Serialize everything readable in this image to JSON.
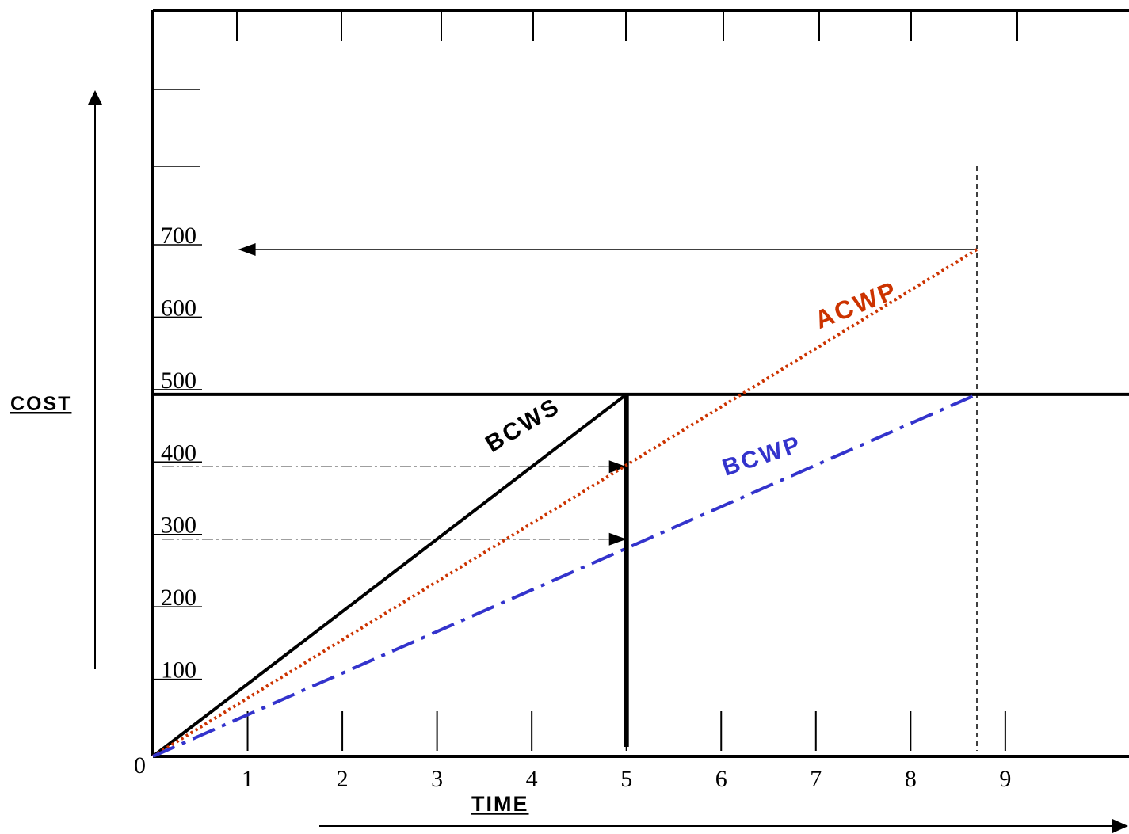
{
  "chart_data": {
    "type": "line",
    "xlabel": "TIME",
    "ylabel": "COST",
    "origin_label": "0",
    "x_tick_labels": [
      {
        "x": 1,
        "label": "1"
      },
      {
        "x": 2,
        "label": "2"
      },
      {
        "x": 3,
        "label": "3"
      },
      {
        "x": 4,
        "label": "4"
      },
      {
        "x": 5,
        "label": "5"
      },
      {
        "x": 6,
        "label": "6"
      },
      {
        "x": 7,
        "label": "7"
      },
      {
        "x": 8,
        "label": "8"
      },
      {
        "x": 9,
        "label": "9"
      }
    ],
    "y_tick_labels": [
      {
        "y": 100,
        "label": "100"
      },
      {
        "y": 200,
        "label": "200"
      },
      {
        "y": 300,
        "label": "300"
      },
      {
        "y": 400,
        "label": "400"
      },
      {
        "y": 500,
        "label": "500"
      },
      {
        "y": 600,
        "label": "600"
      },
      {
        "y": 700,
        "label": "700"
      }
    ],
    "series": [
      {
        "name": "BCWS",
        "color": "#000000",
        "style": "solid",
        "points": [
          [
            0,
            0
          ],
          [
            5,
            500
          ]
        ]
      },
      {
        "name": "ACWP",
        "color": "#cc3300",
        "style": "dotted",
        "points": [
          [
            0,
            0
          ],
          [
            8.7,
            700
          ]
        ]
      },
      {
        "name": "BCWP",
        "color": "#3333cc",
        "style": "dash-dot",
        "points": [
          [
            0,
            0
          ],
          [
            8.7,
            500
          ]
        ]
      }
    ],
    "reference_lines": [
      {
        "kind": "horizontal",
        "y": 500,
        "style": "solid-thick"
      },
      {
        "kind": "vertical",
        "x": 5,
        "y_to": 500,
        "style": "solid-thick"
      },
      {
        "kind": "vertical",
        "x": 8.7,
        "style": "dashed"
      },
      {
        "kind": "arrow-horizontal",
        "y": 700,
        "from_x": 8.7,
        "to_x": 0.9
      },
      {
        "kind": "arrow-horizontal",
        "y": 400,
        "from_x": 0.1,
        "to_x": 5,
        "style": "dash-dot"
      },
      {
        "kind": "arrow-horizontal",
        "y": 300,
        "from_x": 0.1,
        "to_x": 5,
        "style": "dash-dot"
      }
    ],
    "grid": false
  }
}
